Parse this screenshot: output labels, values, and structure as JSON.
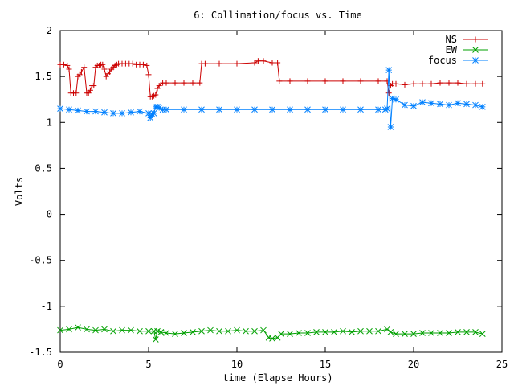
{
  "chart_data": {
    "type": "line",
    "title": "6: Collimation/focus vs. Time",
    "xlabel": "time (Elapse Hours)",
    "ylabel": "Volts",
    "xlim": [
      0,
      25
    ],
    "ylim": [
      -1.5,
      2
    ],
    "xticks": [
      0,
      5,
      10,
      15,
      20,
      25
    ],
    "yticks": [
      -1.5,
      -1,
      -0.5,
      0,
      0.5,
      1,
      1.5,
      2
    ],
    "xtick_labels": [
      "0",
      "5",
      "10",
      "15",
      "20",
      "25"
    ],
    "ytick_labels": [
      "-1.5",
      "-1",
      "-0.5",
      "0",
      "0.5",
      "1",
      "1.5",
      "2"
    ],
    "grid": false,
    "legend_position": "top-right",
    "series": [
      {
        "name": "NS",
        "color": "#cc0000",
        "marker": "plus",
        "x": [
          0.0,
          0.2,
          0.4,
          0.5,
          0.6,
          0.75,
          0.9,
          1.0,
          1.1,
          1.2,
          1.35,
          1.5,
          1.6,
          1.7,
          1.8,
          1.9,
          2.0,
          2.1,
          2.2,
          2.3,
          2.4,
          2.5,
          2.6,
          2.7,
          2.8,
          2.9,
          3.0,
          3.1,
          3.2,
          3.3,
          3.5,
          3.7,
          3.9,
          4.1,
          4.3,
          4.5,
          4.7,
          4.9,
          5.0,
          5.1,
          5.2,
          5.3,
          5.4,
          5.5,
          5.6,
          5.8,
          6.0,
          6.5,
          7.0,
          7.5,
          7.9,
          8.0,
          8.2,
          9.0,
          10.0,
          11.0,
          11.2,
          11.5,
          12.0,
          12.3,
          12.4,
          13.0,
          14.0,
          15.0,
          16.0,
          17.0,
          18.0,
          18.5,
          18.6,
          18.7,
          18.8,
          19.0,
          19.5,
          20.0,
          20.5,
          21.0,
          21.5,
          22.0,
          22.5,
          23.0,
          23.5,
          23.9
        ],
        "y": [
          1.63,
          1.63,
          1.62,
          1.58,
          1.32,
          1.32,
          1.32,
          1.5,
          1.52,
          1.55,
          1.6,
          1.32,
          1.32,
          1.35,
          1.4,
          1.4,
          1.6,
          1.62,
          1.62,
          1.63,
          1.63,
          1.58,
          1.5,
          1.53,
          1.55,
          1.58,
          1.6,
          1.62,
          1.63,
          1.64,
          1.64,
          1.64,
          1.64,
          1.64,
          1.63,
          1.63,
          1.63,
          1.62,
          1.52,
          1.28,
          1.28,
          1.29,
          1.3,
          1.37,
          1.4,
          1.43,
          1.43,
          1.43,
          1.43,
          1.43,
          1.43,
          1.64,
          1.64,
          1.64,
          1.64,
          1.65,
          1.67,
          1.67,
          1.65,
          1.65,
          1.45,
          1.45,
          1.45,
          1.45,
          1.45,
          1.45,
          1.45,
          1.45,
          1.32,
          1.4,
          1.42,
          1.42,
          1.41,
          1.42,
          1.42,
          1.42,
          1.43,
          1.43,
          1.43,
          1.42,
          1.42,
          1.42
        ]
      },
      {
        "name": "EW",
        "color": "#00a000",
        "marker": "cross",
        "x": [
          0.0,
          0.5,
          1.0,
          1.5,
          2.0,
          2.5,
          3.0,
          3.5,
          4.0,
          4.5,
          5.0,
          5.3,
          5.4,
          5.5,
          5.7,
          6.0,
          6.5,
          7.0,
          7.5,
          8.0,
          8.5,
          9.0,
          9.5,
          10.0,
          10.5,
          11.0,
          11.5,
          11.8,
          12.0,
          12.3,
          12.5,
          13.0,
          13.5,
          14.0,
          14.5,
          15.0,
          15.5,
          16.0,
          16.5,
          17.0,
          17.5,
          18.0,
          18.5,
          18.7,
          19.0,
          19.5,
          20.0,
          20.5,
          21.0,
          21.5,
          22.0,
          22.5,
          23.0,
          23.5,
          23.9
        ],
        "y": [
          -1.26,
          -1.25,
          -1.23,
          -1.25,
          -1.26,
          -1.25,
          -1.27,
          -1.26,
          -1.26,
          -1.27,
          -1.27,
          -1.27,
          -1.36,
          -1.27,
          -1.28,
          -1.29,
          -1.3,
          -1.29,
          -1.28,
          -1.27,
          -1.26,
          -1.27,
          -1.27,
          -1.26,
          -1.27,
          -1.27,
          -1.26,
          -1.34,
          -1.35,
          -1.34,
          -1.3,
          -1.3,
          -1.29,
          -1.29,
          -1.28,
          -1.28,
          -1.28,
          -1.27,
          -1.28,
          -1.27,
          -1.27,
          -1.27,
          -1.25,
          -1.28,
          -1.3,
          -1.3,
          -1.3,
          -1.29,
          -1.29,
          -1.29,
          -1.29,
          -1.28,
          -1.28,
          -1.28,
          -1.3
        ]
      },
      {
        "name": "focus",
        "color": "#0080ff",
        "marker": "star",
        "x": [
          0.0,
          0.5,
          1.0,
          1.5,
          2.0,
          2.5,
          3.0,
          3.5,
          4.0,
          4.5,
          5.0,
          5.1,
          5.2,
          5.3,
          5.4,
          5.5,
          5.6,
          5.8,
          6.0,
          7.0,
          8.0,
          9.0,
          10.0,
          11.0,
          12.0,
          13.0,
          14.0,
          15.0,
          16.0,
          17.0,
          18.0,
          18.4,
          18.5,
          18.6,
          18.7,
          18.8,
          19.0,
          19.5,
          20.0,
          20.5,
          21.0,
          21.5,
          22.0,
          22.5,
          23.0,
          23.5,
          23.9
        ],
        "y": [
          1.15,
          1.14,
          1.13,
          1.12,
          1.12,
          1.11,
          1.1,
          1.1,
          1.11,
          1.12,
          1.1,
          1.05,
          1.09,
          1.1,
          1.17,
          1.17,
          1.16,
          1.14,
          1.14,
          1.14,
          1.14,
          1.14,
          1.14,
          1.14,
          1.14,
          1.14,
          1.14,
          1.14,
          1.14,
          1.14,
          1.14,
          1.14,
          1.15,
          1.57,
          0.95,
          1.26,
          1.25,
          1.19,
          1.18,
          1.22,
          1.21,
          1.2,
          1.19,
          1.21,
          1.2,
          1.19,
          1.17
        ]
      }
    ]
  }
}
